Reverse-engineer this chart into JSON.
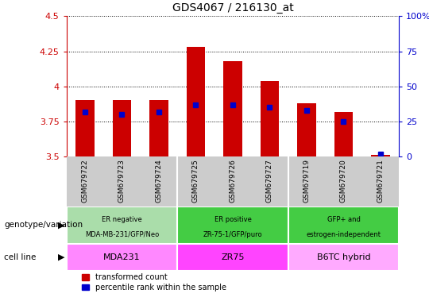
{
  "title": "GDS4067 / 216130_at",
  "samples": [
    "GSM679722",
    "GSM679723",
    "GSM679724",
    "GSM679725",
    "GSM679726",
    "GSM679727",
    "GSM679719",
    "GSM679720",
    "GSM679721"
  ],
  "red_values": [
    3.9,
    3.9,
    3.9,
    4.28,
    4.18,
    4.04,
    3.88,
    3.82,
    3.51
  ],
  "blue_values_pct": [
    32,
    30,
    32,
    37,
    37,
    35,
    33,
    25,
    2
  ],
  "ylim_left": [
    3.5,
    4.5
  ],
  "ylim_right": [
    0,
    100
  ],
  "yticks_left": [
    3.5,
    3.75,
    4.0,
    4.25,
    4.5
  ],
  "yticks_right": [
    0,
    25,
    50,
    75,
    100
  ],
  "ytick_labels_left": [
    "3.5",
    "3.75",
    "4",
    "4.25",
    "4.5"
  ],
  "ytick_labels_right": [
    "0",
    "25",
    "50",
    "75",
    "100%"
  ],
  "groups": [
    {
      "label": "ER negative\nMDA-MB-231/GFP/Neo",
      "cell_line": "MDA231",
      "span": [
        0,
        3
      ],
      "geno_color": "#aaddaa",
      "cell_color": "#ff88ff"
    },
    {
      "label": "ER positive\nZR-75-1/GFP/puro",
      "cell_line": "ZR75",
      "span": [
        3,
        6
      ],
      "geno_color": "#44cc44",
      "cell_color": "#ff44ff"
    },
    {
      "label": "GFP+ and\nestrogen-independent",
      "cell_line": "B6TC hybrid",
      "span": [
        6,
        9
      ],
      "geno_color": "#44cc44",
      "cell_color": "#ffaaff"
    }
  ],
  "bar_color_red": "#cc0000",
  "dot_color_blue": "#0000cc",
  "bar_width": 0.5,
  "grid_color": "black",
  "left_tick_color": "#cc0000",
  "right_tick_color": "#0000cc",
  "plot_bg": "#ffffff",
  "xtick_bg": "#cccccc",
  "legend_red_label": "transformed count",
  "legend_blue_label": "percentile rank within the sample",
  "genotype_label": "genotype/variation",
  "cellline_label": "cell line"
}
